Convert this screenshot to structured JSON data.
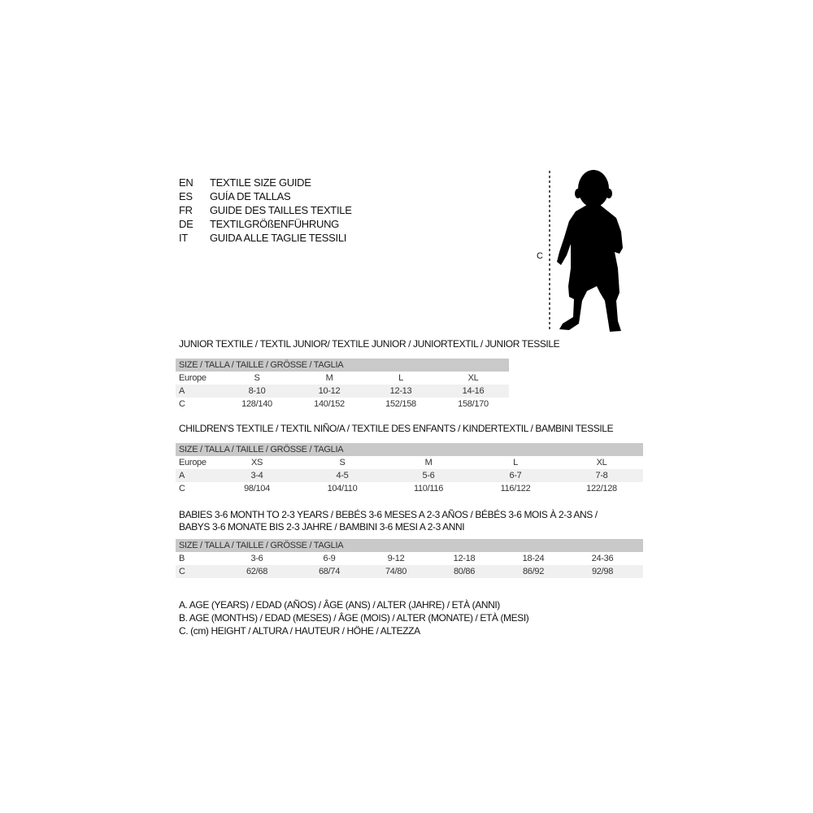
{
  "languages": [
    {
      "code": "EN",
      "title": "TEXTILE SIZE GUIDE"
    },
    {
      "code": "ES",
      "title": "GUÍA DE TALLAS"
    },
    {
      "code": "FR",
      "title": "GUIDE DES TAILLES TEXTILE"
    },
    {
      "code": "DE",
      "title": "TEXTILGRÖßENFÜHRUNG"
    },
    {
      "code": "IT",
      "title": "GUIDA ALLE TAGLIE TESSILI"
    }
  ],
  "figure": {
    "height_label": "C",
    "icon": "child-silhouette-icon"
  },
  "size_header": "SIZE / TALLA / TAILLE / GRÖSSE / TAGLIA",
  "junior": {
    "title": "JUNIOR TEXTILE / TEXTIL JUNIOR/ TEXTILE JUNIOR / JUNIORTEXTIL / JUNIOR TESSILE",
    "rows": [
      {
        "label": "Europe",
        "values": [
          "S",
          "M",
          "L",
          "XL"
        ]
      },
      {
        "label": "A",
        "values": [
          "8-10",
          "10-12",
          "12-13",
          "14-16"
        ]
      },
      {
        "label": "C",
        "values": [
          "128/140",
          "140/152",
          "152/158",
          "158/170"
        ]
      }
    ]
  },
  "children": {
    "title": "CHILDREN'S TEXTILE / TEXTIL NIÑO/A / TEXTILE DES ENFANTS / KINDERTEXTIL / BAMBINI TESSILE",
    "rows": [
      {
        "label": "Europe",
        "values": [
          "XS",
          "S",
          "M",
          "L",
          "XL"
        ]
      },
      {
        "label": "A",
        "values": [
          "3-4",
          "4-5",
          "5-6",
          "6-7",
          "7-8"
        ]
      },
      {
        "label": "C",
        "values": [
          "98/104",
          "104/110",
          "110/116",
          "116/122",
          "122/128"
        ]
      }
    ]
  },
  "babies": {
    "title_line1": "BABIES 3-6 MONTH TO 2-3 YEARS / BEBÉS 3-6 MESES A 2-3 AÑOS / BÉBÉS 3-6 MOIS À 2-3 ANS /",
    "title_line2": "BABYS 3-6 MONATE BIS 2-3 JAHRE / BAMBINI 3-6 MESI A 2-3 ANNI",
    "rows": [
      {
        "label": "B",
        "values": [
          "3-6",
          "6-9",
          "9-12",
          "12-18",
          "18-24",
          "24-36"
        ]
      },
      {
        "label": "C",
        "values": [
          "62/68",
          "68/74",
          "74/80",
          "80/86",
          "86/92",
          "92/98"
        ]
      }
    ]
  },
  "legend": [
    "A. AGE (YEARS) / EDAD (AÑOS) / ÂGE (ANS) / ALTER (JAHRE) / ETÀ (ANNI)",
    "B. AGE (MONTHS) / EDAD (MESES) / ÂGE (MOIS) / ALTER (MONATE) / ETÀ (MESI)",
    "C. (cm) HEIGHT / ALTURA / HAUTEUR / HÖHE / ALTEZZA"
  ]
}
